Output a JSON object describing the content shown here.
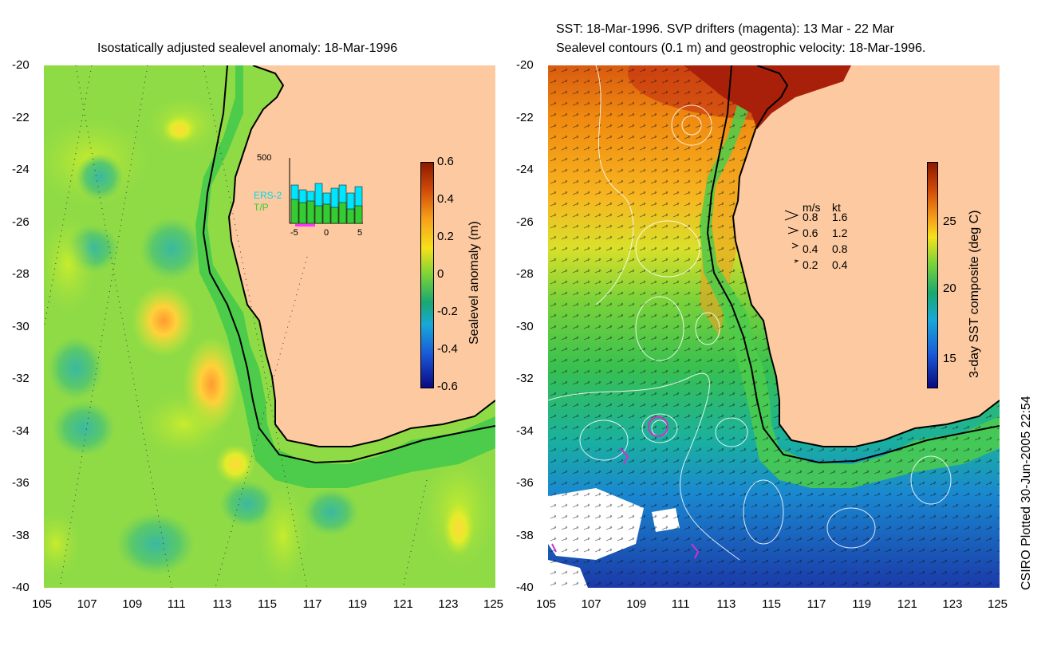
{
  "left_panel": {
    "title": "Isostatically adjusted sealevel anomaly: 18-Mar-1996",
    "y_ticks": [
      "-20",
      "-22",
      "-24",
      "-26",
      "-28",
      "-30",
      "-32",
      "-34",
      "-36",
      "-38",
      "-40"
    ],
    "x_ticks": [
      "105",
      "107",
      "109",
      "111",
      "113",
      "115",
      "117",
      "119",
      "121",
      "123",
      "125"
    ],
    "colorbar": {
      "label": "Sealevel anomaly (m)",
      "ticks": [
        "0.6",
        "0.4",
        "0.2",
        "0",
        "-0.2",
        "-0.4",
        "-0.6"
      ]
    },
    "inset": {
      "ymax_label": "500",
      "legend": [
        "ERS-2",
        "T/P"
      ],
      "x_ticks": [
        "-5",
        "0",
        "5"
      ],
      "colors": {
        "ers2": "#00e5ff",
        "tp": "#33cc33"
      }
    }
  },
  "right_panel": {
    "title_line1": "SST: 18-Mar-1996. SVP drifters (magenta): 13 Mar - 22 Mar",
    "title_line2": "Sealevel contours (0.1 m) and geostrophic velocity: 18-Mar-1996.",
    "y_ticks": [
      "-20",
      "-22",
      "-24",
      "-26",
      "-28",
      "-30",
      "-32",
      "-34",
      "-36",
      "-38",
      "-40"
    ],
    "x_ticks": [
      "105",
      "107",
      "109",
      "111",
      "113",
      "115",
      "117",
      "119",
      "121",
      "123",
      "125"
    ],
    "colorbar": {
      "label": "3-day SST composite (deg C)",
      "ticks": [
        "25",
        "20",
        "15"
      ]
    },
    "velocity_legend": {
      "header_ms": "m/s",
      "header_kt": "kt",
      "rows": [
        {
          "ms": "0.8",
          "kt": "1.6"
        },
        {
          "ms": "0.6",
          "kt": "1.2"
        },
        {
          "ms": "0.4",
          "kt": "0.8"
        },
        {
          "ms": "0.2",
          "kt": "0.4"
        }
      ]
    }
  },
  "credit": "CSIRO Plotted 30-Jun-2005 22:54",
  "colors": {
    "land": "#fcc9a0",
    "ocean_green": "#4ccc4a",
    "drifters": "#cc33cc"
  }
}
